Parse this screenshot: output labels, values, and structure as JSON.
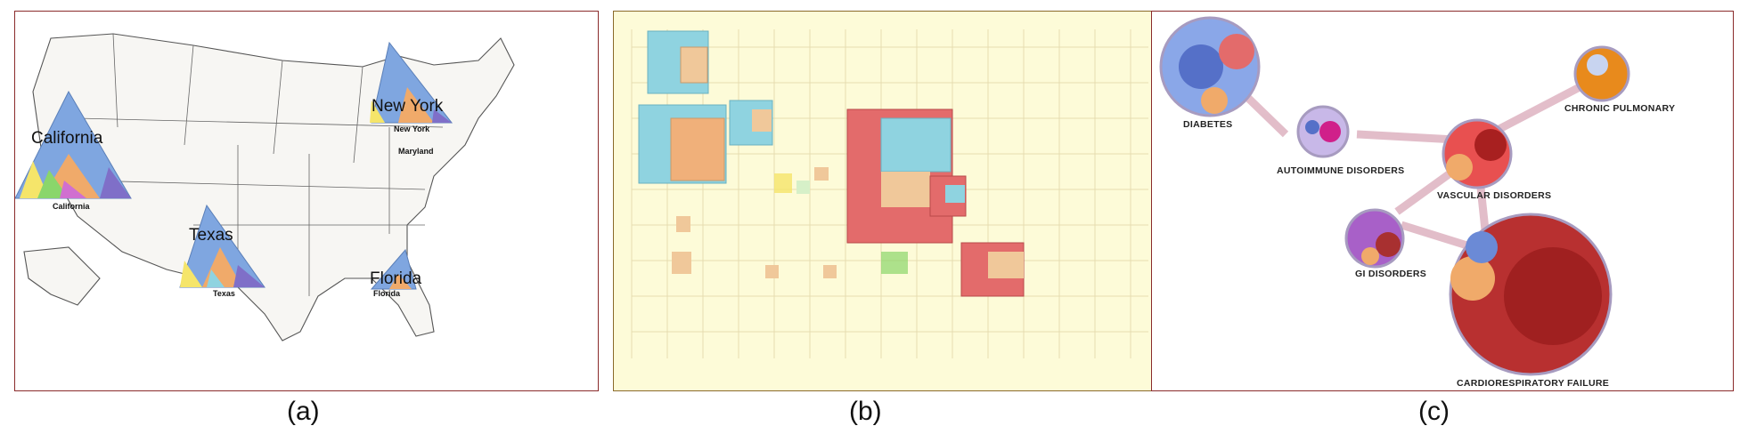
{
  "panel_a": {
    "caption": "(a)",
    "states": [
      {
        "name": "California",
        "small": "California"
      },
      {
        "name": "New York",
        "small": "New York"
      },
      {
        "name": "Texas",
        "small": "Texas"
      },
      {
        "name": "Florida",
        "small": "Florida"
      }
    ],
    "extra_label": "Maryland"
  },
  "panel_b": {
    "caption": "(b)"
  },
  "panel_c": {
    "caption": "(c)",
    "nodes": [
      {
        "label": "DIABETES"
      },
      {
        "label": "AUTOIMMUNE DISORDERS"
      },
      {
        "label": "CHRONIC PULMONARY"
      },
      {
        "label": "VASCULAR DISORDERS"
      },
      {
        "label": "GI DISORDERS"
      },
      {
        "label": "CARDIORESPIRATORY FAILURE"
      }
    ]
  },
  "colors": {
    "blue": "#7fa6e0",
    "orange": "#f0aa6a",
    "red": "#e36b6b",
    "cyan": "#8fd3e0",
    "purple": "#7f6fc8",
    "green": "#8ad66b"
  }
}
